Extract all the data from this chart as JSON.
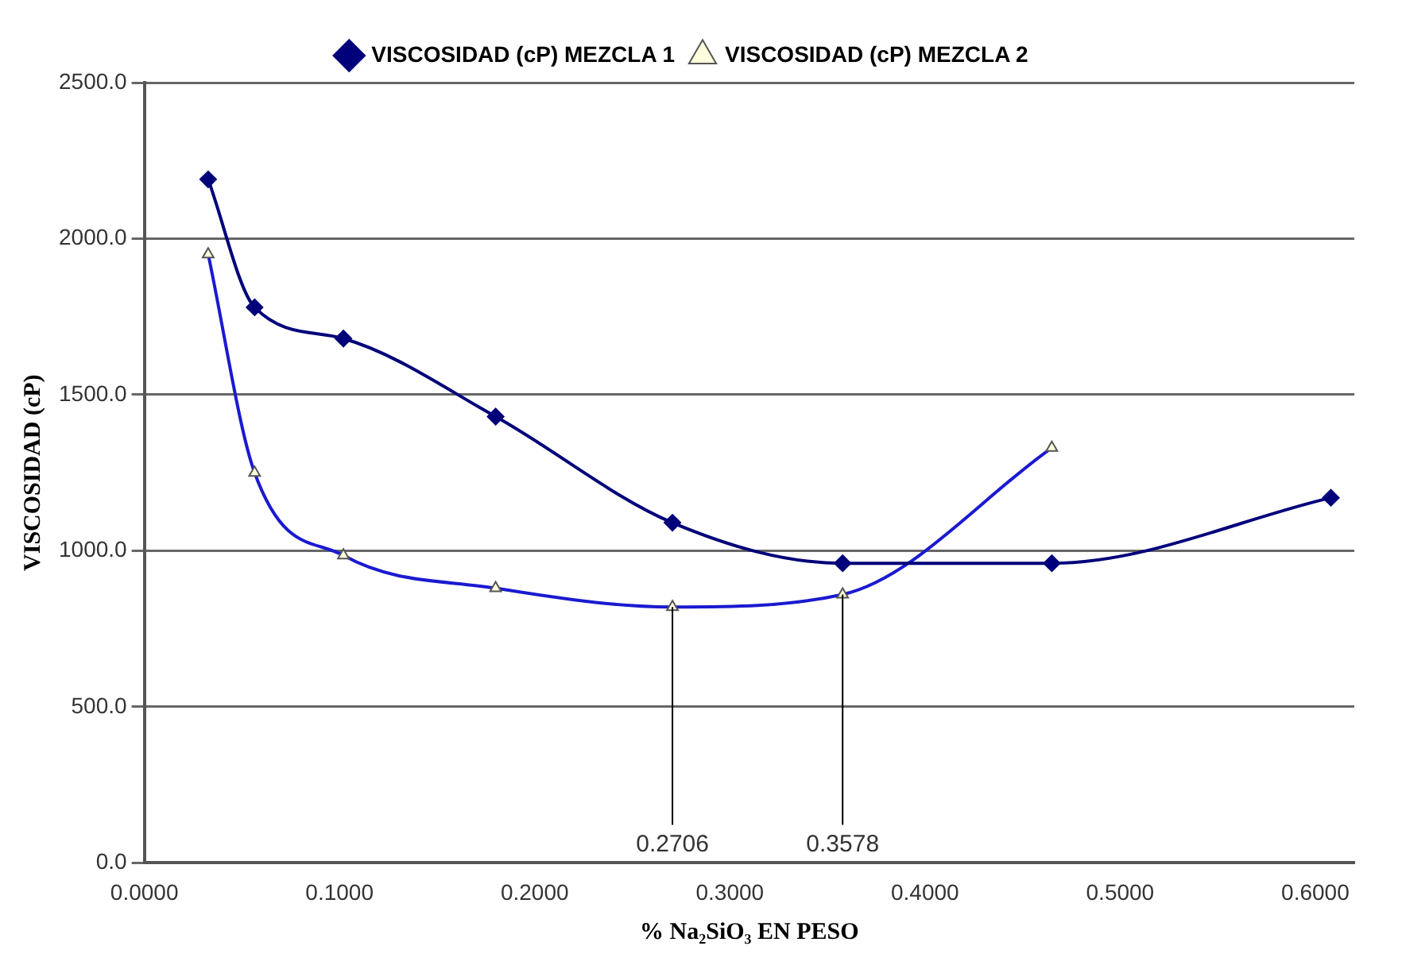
{
  "chart_data": {
    "type": "line",
    "xlabel": "% Na₂SiO₃ EN PESO",
    "ylabel": "VISCOSIDAD (cP)",
    "xlim": [
      0,
      0.62
    ],
    "xticks": [
      {
        "value": 0,
        "label": "0.0000"
      },
      {
        "value": 0.1,
        "label": "0.1000"
      },
      {
        "value": 0.2,
        "label": "0.2000"
      },
      {
        "value": 0.3,
        "label": "0.3000"
      },
      {
        "value": 0.4,
        "label": "0.4000"
      },
      {
        "value": 0.5,
        "label": "0.5000"
      },
      {
        "value": 0.6,
        "label": "0.6000"
      }
    ],
    "ylim": [
      0,
      2500
    ],
    "yticks": [
      {
        "value": 0,
        "label": "0.0"
      },
      {
        "value": 500,
        "label": "500.0"
      },
      {
        "value": 1000,
        "label": "1000.0"
      },
      {
        "value": 1500,
        "label": "1500.0"
      },
      {
        "value": 2000,
        "label": "2000.0"
      },
      {
        "value": 2500,
        "label": "2500.0"
      }
    ],
    "grid": "y",
    "legend": "top",
    "series": [
      {
        "name": "VISCOSIDAD (cP) MEZCLA 1",
        "color": "#00007a",
        "marker": "diamond",
        "x": [
          0.0327,
          0.0565,
          0.102,
          0.18,
          0.2706,
          0.3578,
          0.465,
          0.608
        ],
        "values": [
          2190,
          1780,
          1680,
          1430,
          1090,
          960,
          960,
          1170
        ]
      },
      {
        "name": "VISCOSIDAD (cP) MEZCLA 2",
        "color": "#1a1ad0",
        "marker": "triangle",
        "x": [
          0.0327,
          0.0565,
          0.102,
          0.18,
          0.2706,
          0.3578,
          0.465
        ],
        "values": [
          1950,
          1250,
          985,
          880,
          820,
          860,
          1330
        ]
      }
    ],
    "ref_lines": [
      {
        "axis": "x",
        "value": 0.2706,
        "label": "0.2706",
        "color": "#000000"
      },
      {
        "axis": "x",
        "value": 0.3578,
        "label": "0.3578",
        "color": "#000000"
      }
    ]
  }
}
